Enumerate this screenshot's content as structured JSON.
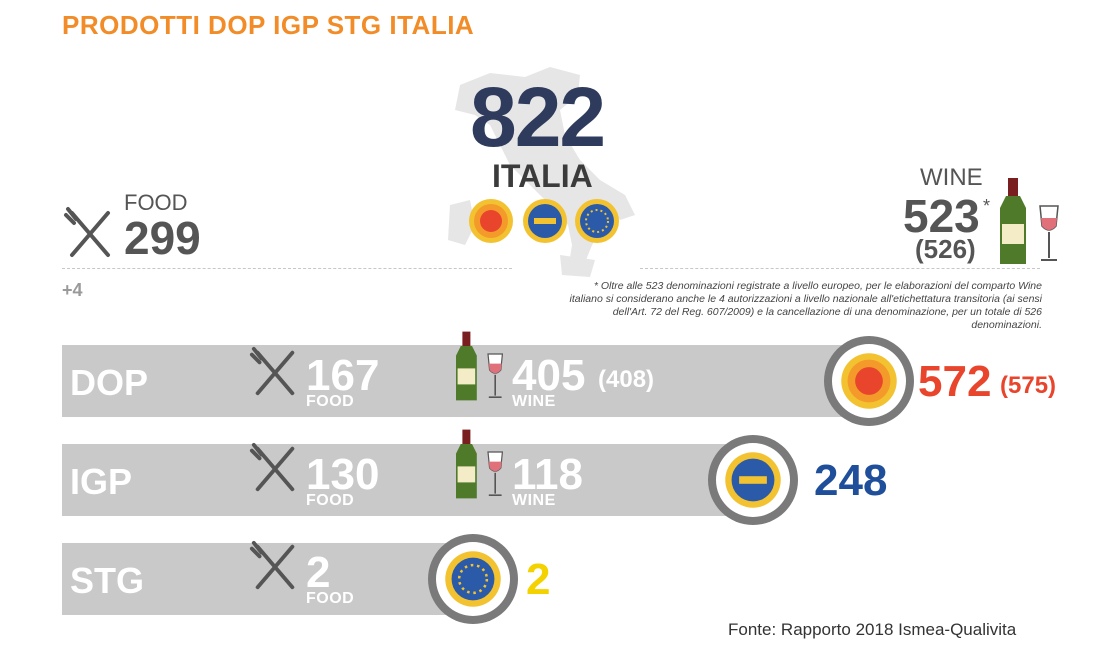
{
  "title": "PRODOTTI DOP IGP STG ITALIA",
  "header": {
    "total": "822",
    "country": "ITALIA",
    "food_label": "FOOD",
    "food_total": "299",
    "food_extra": "+4",
    "wine_label": "WINE",
    "wine_total": "523",
    "wine_star": "*",
    "wine_total_alt": "(526)"
  },
  "note": "* Oltre alle 523 denominazioni registrate a livello europeo, per le elaborazioni del comparto Wine italiano si considerano anche le 4 autorizzazioni a livello nazionale all'etichettatura transitoria (ai sensi dell'Art. 72 del Reg. 607/2009) e la cancellazione di una denominazione, per un totale di 526 denominazioni.",
  "rows": [
    {
      "label": "DOP",
      "food": "167",
      "food_label": "FOOD",
      "wine": "405",
      "wine_alt": "(408)",
      "wine_label": "WINE",
      "total": "572",
      "total_alt": "(575)",
      "color": "#e8452c"
    },
    {
      "label": "IGP",
      "food": "130",
      "food_label": "FOOD",
      "wine": "118",
      "wine_label": "WINE",
      "total": "248",
      "color": "#1f4f9a"
    },
    {
      "label": "STG",
      "food": "2",
      "food_label": "FOOD",
      "total": "2",
      "color": "#f3d200"
    }
  ],
  "icons": {
    "cutlery": "cutlery-icon",
    "wine": "wine-bottle-glass-icon",
    "dop_seal": "dop-seal-icon",
    "igp_seal": "igp-seal-icon",
    "stg_seal": "stg-seal-icon",
    "map": "italy-map-icon"
  },
  "source": "Fonte: Rapporto 2018 Ismea-Qualivita"
}
